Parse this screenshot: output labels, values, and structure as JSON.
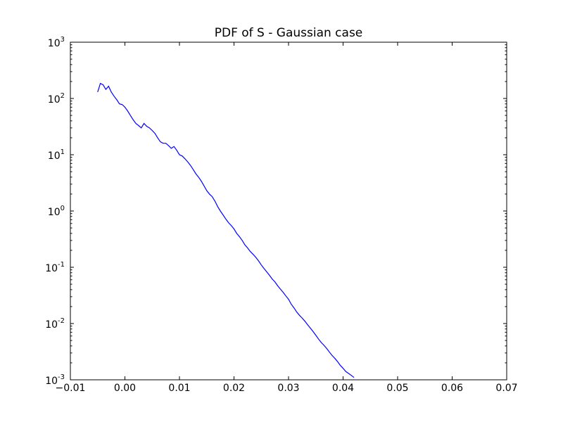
{
  "chart_data": {
    "type": "line",
    "title": "PDF of S - Gaussian case",
    "xlabel": "",
    "ylabel": "",
    "xlim": [
      -0.01,
      0.07
    ],
    "ylim": [
      0.001,
      1000
    ],
    "yscale": "log",
    "grid": false,
    "x_ticks": [
      "−0.01",
      "0.00",
      "0.01",
      "0.02",
      "0.03",
      "0.04",
      "0.05",
      "0.06",
      "0.07"
    ],
    "y_ticks": [
      {
        "base": "10",
        "exp": "-3"
      },
      {
        "base": "10",
        "exp": "-2"
      },
      {
        "base": "10",
        "exp": "-1"
      },
      {
        "base": "10",
        "exp": "0"
      },
      {
        "base": "10",
        "exp": "1"
      },
      {
        "base": "10",
        "exp": "2"
      },
      {
        "base": "10",
        "exp": "3"
      }
    ],
    "series_color": "#0000ff",
    "series": [
      {
        "points": [
          [
            -0.005,
            130
          ],
          [
            -0.0045,
            185
          ],
          [
            -0.004,
            175
          ],
          [
            -0.0035,
            145
          ],
          [
            -0.003,
            165
          ],
          [
            -0.0025,
            130
          ],
          [
            -0.002,
            110
          ],
          [
            -0.0015,
            95
          ],
          [
            -0.001,
            80
          ],
          [
            -0.0005,
            78
          ],
          [
            0.0,
            70
          ],
          [
            0.0005,
            60
          ],
          [
            0.001,
            50
          ],
          [
            0.0015,
            42
          ],
          [
            0.002,
            36
          ],
          [
            0.0025,
            33
          ],
          [
            0.003,
            30
          ],
          [
            0.0035,
            36
          ],
          [
            0.004,
            32
          ],
          [
            0.0045,
            30
          ],
          [
            0.005,
            27
          ],
          [
            0.0055,
            24
          ],
          [
            0.006,
            20
          ],
          [
            0.0065,
            17
          ],
          [
            0.007,
            16
          ],
          [
            0.0075,
            16
          ],
          [
            0.008,
            14.5
          ],
          [
            0.0085,
            13
          ],
          [
            0.009,
            14
          ],
          [
            0.0095,
            12
          ],
          [
            0.01,
            10
          ],
          [
            0.0105,
            9.5
          ],
          [
            0.011,
            8.5
          ],
          [
            0.0115,
            7.5
          ],
          [
            0.012,
            6.5
          ],
          [
            0.0125,
            5.5
          ],
          [
            0.013,
            4.6
          ],
          [
            0.0135,
            4.0
          ],
          [
            0.014,
            3.4
          ],
          [
            0.0145,
            2.8
          ],
          [
            0.015,
            2.3
          ],
          [
            0.0155,
            2.0
          ],
          [
            0.016,
            1.8
          ],
          [
            0.0165,
            1.5
          ],
          [
            0.017,
            1.2
          ],
          [
            0.0175,
            1.0
          ],
          [
            0.018,
            0.85
          ],
          [
            0.0185,
            0.72
          ],
          [
            0.019,
            0.62
          ],
          [
            0.0195,
            0.55
          ],
          [
            0.02,
            0.48
          ],
          [
            0.0205,
            0.4
          ],
          [
            0.021,
            0.35
          ],
          [
            0.0215,
            0.3
          ],
          [
            0.022,
            0.25
          ],
          [
            0.0225,
            0.22
          ],
          [
            0.023,
            0.19
          ],
          [
            0.0235,
            0.17
          ],
          [
            0.024,
            0.15
          ],
          [
            0.0245,
            0.13
          ],
          [
            0.025,
            0.11
          ],
          [
            0.0255,
            0.095
          ],
          [
            0.026,
            0.083
          ],
          [
            0.0265,
            0.072
          ],
          [
            0.027,
            0.062
          ],
          [
            0.0275,
            0.055
          ],
          [
            0.028,
            0.047
          ],
          [
            0.0285,
            0.041
          ],
          [
            0.029,
            0.036
          ],
          [
            0.0295,
            0.031
          ],
          [
            0.03,
            0.027
          ],
          [
            0.0305,
            0.022
          ],
          [
            0.031,
            0.019
          ],
          [
            0.0315,
            0.016
          ],
          [
            0.032,
            0.014
          ],
          [
            0.0325,
            0.0125
          ],
          [
            0.033,
            0.011
          ],
          [
            0.0335,
            0.0095
          ],
          [
            0.034,
            0.0083
          ],
          [
            0.0345,
            0.0072
          ],
          [
            0.035,
            0.0062
          ],
          [
            0.0355,
            0.0053
          ],
          [
            0.036,
            0.0046
          ],
          [
            0.0365,
            0.0041
          ],
          [
            0.037,
            0.0036
          ],
          [
            0.0375,
            0.0031
          ],
          [
            0.038,
            0.0027
          ],
          [
            0.0385,
            0.0024
          ],
          [
            0.039,
            0.0021
          ],
          [
            0.0395,
            0.0018
          ],
          [
            0.04,
            0.0016
          ],
          [
            0.0405,
            0.0014
          ],
          [
            0.041,
            0.0013
          ],
          [
            0.0415,
            0.0012
          ],
          [
            0.042,
            0.0011
          ]
        ]
      }
    ],
    "series_override_note": ""
  }
}
